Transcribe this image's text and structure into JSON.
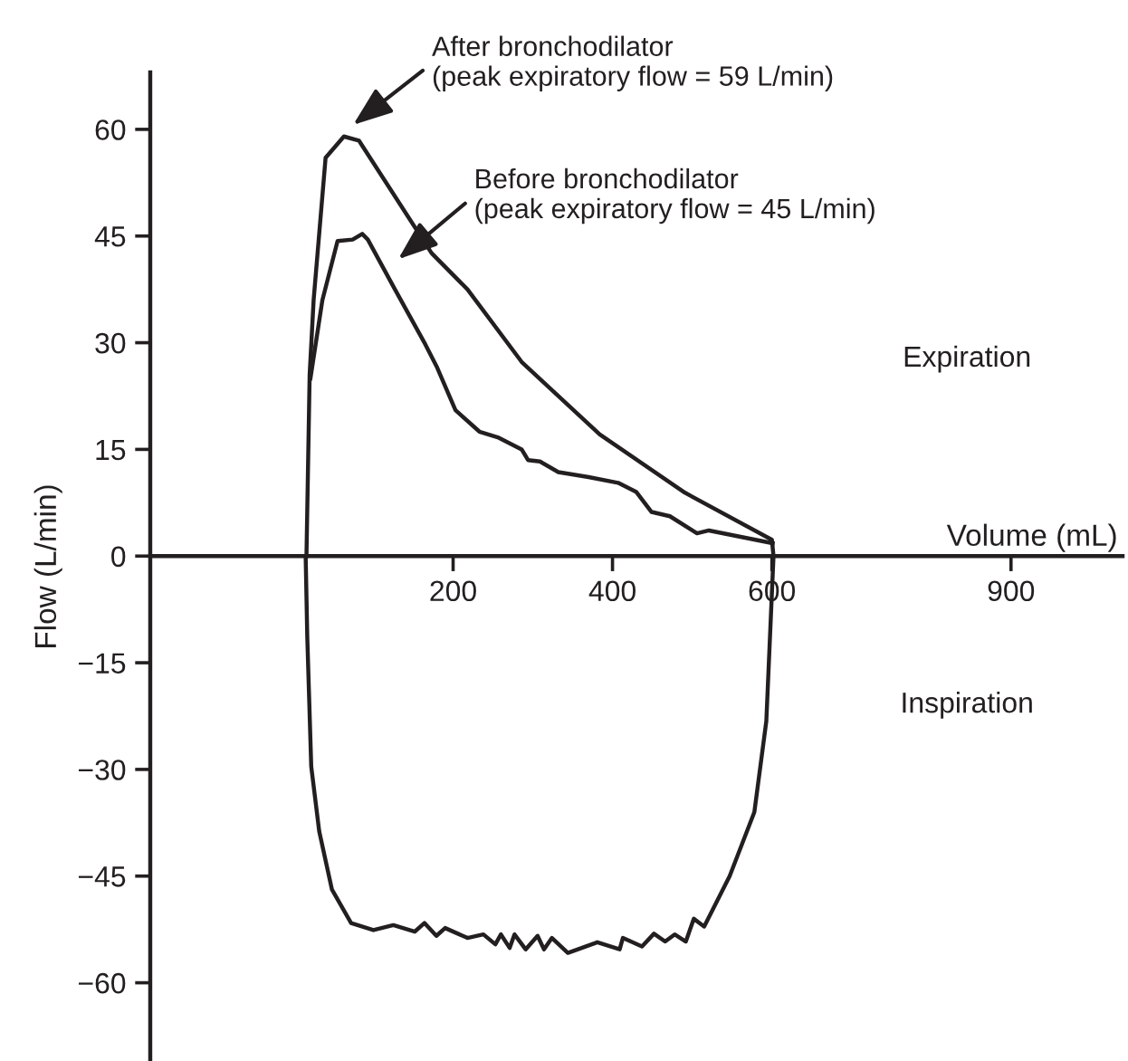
{
  "chart_data": {
    "type": "line",
    "xlabel": "Volume (mL)",
    "ylabel": "Flow (L/min)",
    "xlim": [
      -180,
      1040
    ],
    "ylim": [
      -71,
      68
    ],
    "xticks": [
      200,
      400,
      600,
      900
    ],
    "yticks": [
      {
        "value": -60,
        "label": "−60"
      },
      {
        "value": -45,
        "label": "−45"
      },
      {
        "value": -30,
        "label": "−30"
      },
      {
        "value": -15,
        "label": "−15"
      },
      0,
      15,
      30,
      45,
      60
    ],
    "grid": false,
    "marker": "none",
    "line_style": "solid",
    "series": [
      {
        "color": "#231f20",
        "x": [
          16,
          20,
          25,
          40,
          63,
          82,
          173,
          218,
          286,
          384,
          491,
          600,
          602,
          593,
          578,
          547,
          515,
          502,
          492,
          478,
          466,
          452,
          437,
          413,
          409,
          381,
          344,
          324,
          314,
          306,
          291,
          277,
          271,
          260,
          253,
          238,
          218,
          190,
          179,
          164,
          152,
          125,
          100,
          72,
          48,
          32,
          22,
          17,
          15
        ],
        "values": [
          0,
          25.5,
          36,
          56,
          59,
          58.4,
          42.6,
          37.5,
          27.3,
          17.1,
          8.9,
          2.3,
          0,
          -23.2,
          -36,
          -45,
          -52.1,
          -51,
          -54.2,
          -53.2,
          -54.2,
          -53.1,
          -54.9,
          -53.7,
          -55.3,
          -54.3,
          -55.8,
          -53.7,
          -55.3,
          -53.4,
          -55.3,
          -53.2,
          -55.1,
          -53.2,
          -54.6,
          -53.2,
          -53.7,
          -52.3,
          -53.4,
          -51.6,
          -52.8,
          -51.9,
          -52.6,
          -51.6,
          -46.9,
          -38.7,
          -29.6,
          -11.3,
          0
        ]
      },
      {
        "color": "#231f20",
        "x": [
          21,
          36,
          55,
          74,
          86,
          93,
          127,
          165,
          180,
          203,
          233,
          256,
          286,
          294,
          309,
          332,
          370,
          407,
          430,
          449,
          472,
          506,
          521,
          601
        ],
        "values": [
          25,
          36,
          44.3,
          44.5,
          45.3,
          44.5,
          37.5,
          29.8,
          26.5,
          20.5,
          17.5,
          16.7,
          15,
          13.5,
          13.3,
          11.8,
          11.1,
          10.3,
          9,
          6.2,
          5.6,
          3.2,
          3.6,
          1.8
        ]
      }
    ],
    "annotations": [
      "After bronchodilator\n(peak expiratory flow = 59 L/min)",
      "Before bronchodilator\n(peak expiratory flow = 45 L/min)",
      "Expiration",
      "Inspiration"
    ]
  }
}
